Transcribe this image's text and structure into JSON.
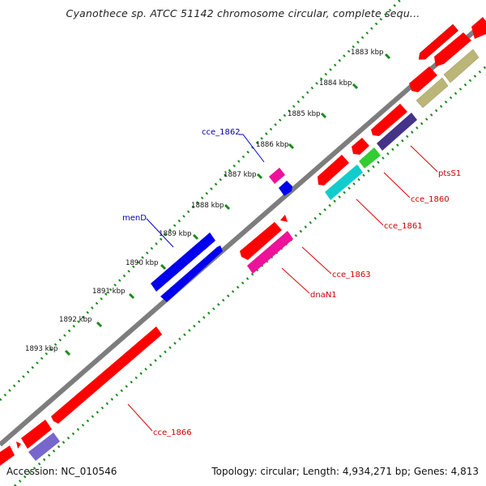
{
  "title": "Cyanothece sp. ATCC 51142 chromosome circular, complete sequ...",
  "footer": {
    "accession": "Accession: NC_010546",
    "topology": "Topology: circular; Length: 4,934,271 bp; Genes: 4,813"
  },
  "colors": {
    "backbone": "#777777",
    "ticks": "#1a8a1a",
    "red_gene": "#ff0000",
    "blue_gene": "#0000ee",
    "magenta_gene": "#ee1199",
    "cyan_gene": "#11cccc",
    "green_gene": "#33cc33",
    "navy_gene": "#443388",
    "khaki_gene": "#bbb577",
    "purple_gene": "#7766cc",
    "label_red": "#cc0000",
    "label_blue": "#0000aa"
  },
  "positions": [
    "1883 kbp",
    "1884 kbp",
    "1885 kbp",
    "1886 kbp",
    "1887 kbp",
    "1888 kbp",
    "1889 kbp",
    "1890 kbp",
    "1891 kbp",
    "1892 kbp",
    "1893 kbp"
  ],
  "gene_labels": {
    "pts1": "ptsS1",
    "cce1860": "cce_1860",
    "cce1861": "cce_1861",
    "cce1862": "cce_1862",
    "cce1863": "cce_1863",
    "dnaN1": "dnaN1",
    "menD": "menD",
    "cce1866": "cce_1866"
  }
}
